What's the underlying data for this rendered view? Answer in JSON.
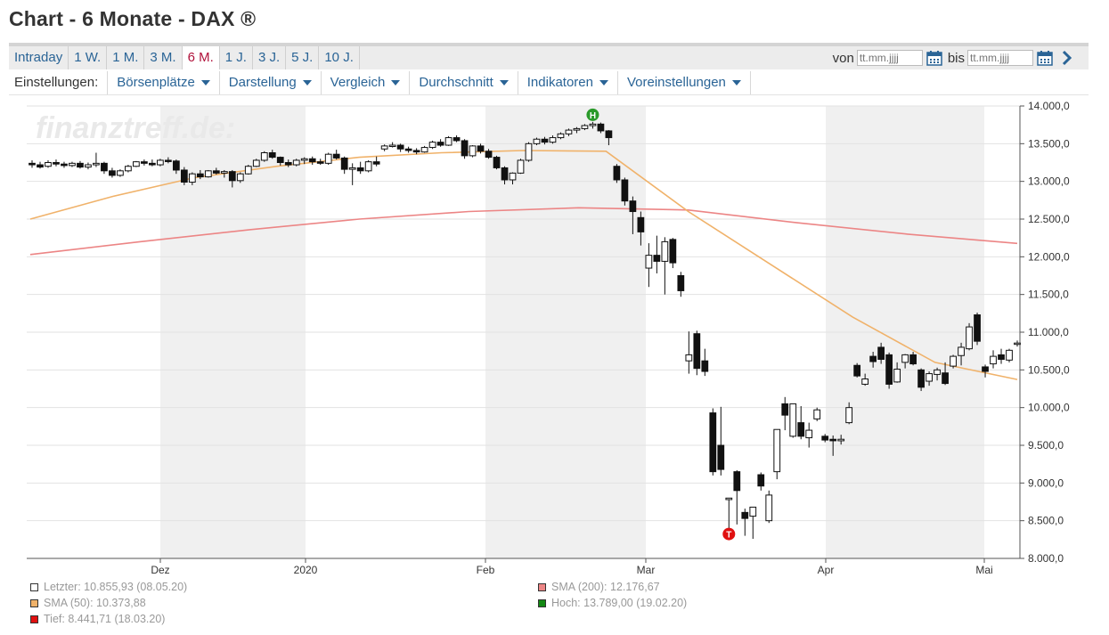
{
  "page": {
    "title": "Chart - 6 Monate - DAX ®"
  },
  "timeframe_tabs": [
    {
      "label": "Intraday",
      "active": false
    },
    {
      "label": "1 W.",
      "active": false
    },
    {
      "label": "1 M.",
      "active": false
    },
    {
      "label": "3 M.",
      "active": false
    },
    {
      "label": "6 M.",
      "active": true
    },
    {
      "label": "1 J.",
      "active": false
    },
    {
      "label": "3 J.",
      "active": false
    },
    {
      "label": "5 J.",
      "active": false
    },
    {
      "label": "10 J.",
      "active": false
    }
  ],
  "date_range": {
    "from_label": "von",
    "from_placeholder": "tt.mm.jjjj",
    "to_label": "bis",
    "to_placeholder": "tt.mm.jjjj",
    "icons": [
      "calendar-icon",
      "calendar-icon",
      "chevron-right-icon"
    ]
  },
  "settings": {
    "label": "Einstellungen:",
    "menus": [
      "Börsenplätze",
      "Darstellung",
      "Vergleich",
      "Durchschnitt",
      "Indikatoren",
      "Voreinstellungen"
    ]
  },
  "watermark": "finanztreff.de:",
  "colors": {
    "link": "#2a6496",
    "active_tab": "#b0113a",
    "sma50": "#f0b26a",
    "sma200": "#ec8585",
    "high_marker": "#2a9a2a",
    "low_marker": "#e01010",
    "shaded_month": "#f0f0f0"
  },
  "chart_data": {
    "type": "candlestick",
    "ylim": [
      8000,
      14000
    ],
    "yticks": [
      "14.000,0",
      "13.500,0",
      "13.000,0",
      "12.500,0",
      "12.000,0",
      "11.500,0",
      "11.000,0",
      "10.500,0",
      "10.000,0",
      "9.500,0",
      "9.000,0",
      "8.500,0",
      "8.000,0"
    ],
    "x_labels": [
      "Dez",
      "2020",
      "Feb",
      "Mar",
      "Apr",
      "Mai"
    ],
    "shaded_months": [
      "Dez",
      "Feb",
      "Apr"
    ],
    "candles": [
      [
        13240,
        13280,
        13180,
        13220
      ],
      [
        13220,
        13260,
        13170,
        13190
      ],
      [
        13200,
        13280,
        13180,
        13250
      ],
      [
        13250,
        13290,
        13200,
        13230
      ],
      [
        13230,
        13260,
        13180,
        13210
      ],
      [
        13210,
        13260,
        13190,
        13240
      ],
      [
        13240,
        13270,
        13170,
        13190
      ],
      [
        13190,
        13250,
        13160,
        13220
      ],
      [
        13220,
        13380,
        13190,
        13240
      ],
      [
        13240,
        13260,
        13100,
        13140
      ],
      [
        13140,
        13180,
        13050,
        13080
      ],
      [
        13080,
        13160,
        13060,
        13140
      ],
      [
        13140,
        13220,
        13120,
        13200
      ],
      [
        13200,
        13270,
        13190,
        13260
      ],
      [
        13260,
        13290,
        13210,
        13240
      ],
      [
        13240,
        13290,
        13200,
        13220
      ],
      [
        13220,
        13300,
        13200,
        13280
      ],
      [
        13280,
        13320,
        13240,
        13270
      ],
      [
        13270,
        13290,
        13100,
        13150
      ],
      [
        13150,
        13190,
        12950,
        12990
      ],
      [
        12990,
        13120,
        12950,
        13100
      ],
      [
        13100,
        13150,
        13030,
        13060
      ],
      [
        13060,
        13150,
        13050,
        13140
      ],
      [
        13140,
        13180,
        13090,
        13110
      ],
      [
        13110,
        13150,
        13050,
        13130
      ],
      [
        13130,
        13150,
        12920,
        13010
      ],
      [
        13010,
        13120,
        12980,
        13100
      ],
      [
        13100,
        13220,
        13090,
        13200
      ],
      [
        13200,
        13300,
        13190,
        13280
      ],
      [
        13280,
        13400,
        13260,
        13380
      ],
      [
        13380,
        13420,
        13300,
        13320
      ],
      [
        13320,
        13330,
        13210,
        13250
      ],
      [
        13250,
        13290,
        13190,
        13220
      ],
      [
        13220,
        13300,
        13200,
        13280
      ],
      [
        13280,
        13320,
        13230,
        13300
      ],
      [
        13300,
        13330,
        13220,
        13260
      ],
      [
        13260,
        13300,
        13220,
        13240
      ],
      [
        13240,
        13380,
        13220,
        13360
      ],
      [
        13360,
        13420,
        13290,
        13310
      ],
      [
        13310,
        13330,
        13100,
        13160
      ],
      [
        13160,
        13240,
        12950,
        13180
      ],
      [
        13180,
        13260,
        13100,
        13140
      ],
      [
        13140,
        13280,
        13120,
        13260
      ],
      [
        13260,
        13330,
        13200,
        13230
      ],
      [
        13430,
        13490,
        13400,
        13470
      ],
      [
        13470,
        13520,
        13450,
        13480
      ],
      [
        13480,
        13500,
        13390,
        13430
      ],
      [
        13430,
        13460,
        13380,
        13410
      ],
      [
        13410,
        13440,
        13360,
        13390
      ],
      [
        13390,
        13470,
        13380,
        13450
      ],
      [
        13450,
        13540,
        13430,
        13520
      ],
      [
        13520,
        13560,
        13460,
        13480
      ],
      [
        13480,
        13600,
        13470,
        13580
      ],
      [
        13580,
        13610,
        13520,
        13540
      ],
      [
        13540,
        13560,
        13300,
        13340
      ],
      [
        13340,
        13480,
        13320,
        13470
      ],
      [
        13470,
        13500,
        13370,
        13400
      ],
      [
        13400,
        13430,
        13300,
        13320
      ],
      [
        13320,
        13340,
        13160,
        13180
      ],
      [
        13180,
        13200,
        12960,
        13020
      ],
      [
        13020,
        13120,
        12960,
        13110
      ],
      [
        13110,
        13300,
        13100,
        13280
      ],
      [
        13280,
        13520,
        13260,
        13500
      ],
      [
        13500,
        13580,
        13480,
        13560
      ],
      [
        13560,
        13590,
        13490,
        13520
      ],
      [
        13520,
        13610,
        13500,
        13580
      ],
      [
        13580,
        13650,
        13560,
        13630
      ],
      [
        13630,
        13700,
        13600,
        13680
      ],
      [
        13680,
        13720,
        13640,
        13700
      ],
      [
        13700,
        13760,
        13680,
        13740
      ],
      [
        13740,
        13789,
        13700,
        13760
      ],
      [
        13760,
        13780,
        13640,
        13670
      ],
      [
        13670,
        13680,
        13480,
        13580
      ],
      [
        13200,
        13230,
        12980,
        13020
      ],
      [
        13020,
        13050,
        12680,
        12740
      ],
      [
        12740,
        12800,
        12300,
        12600
      ],
      [
        12520,
        12600,
        12150,
        12330
      ],
      [
        11850,
        12180,
        11600,
        12020
      ],
      [
        12020,
        12280,
        11780,
        11940
      ],
      [
        11940,
        12260,
        11500,
        12200
      ],
      [
        12230,
        12250,
        11850,
        11920
      ],
      [
        11750,
        11800,
        11470,
        11550
      ],
      [
        10620,
        11010,
        10450,
        10700
      ],
      [
        10980,
        11020,
        10430,
        10520
      ],
      [
        10620,
        10780,
        10420,
        10480
      ],
      [
        9930,
        9990,
        9100,
        9150
      ],
      [
        9500,
        10010,
        9100,
        9180
      ],
      [
        8780,
        8800,
        8260,
        8800
      ],
      [
        9150,
        9170,
        8450,
        8900
      ],
      [
        8610,
        8660,
        8300,
        8530
      ],
      [
        8560,
        8680,
        8260,
        8680
      ],
      [
        9110,
        9140,
        8900,
        8960
      ],
      [
        8500,
        8900,
        8470,
        8840
      ],
      [
        9150,
        9700,
        9050,
        9710
      ],
      [
        10050,
        10140,
        9700,
        9900
      ],
      [
        9620,
        10050,
        9600,
        10050
      ],
      [
        9800,
        10020,
        9580,
        9620
      ],
      [
        9600,
        9800,
        9470,
        9700
      ],
      [
        9850,
        10000,
        9820,
        9970
      ],
      [
        9620,
        9650,
        9540,
        9570
      ],
      [
        9580,
        9630,
        9360,
        9560
      ],
      [
        9560,
        9640,
        9510,
        9580
      ],
      [
        9800,
        10070,
        9780,
        10000
      ],
      [
        10560,
        10590,
        10400,
        10420
      ],
      [
        10310,
        10450,
        10290,
        10380
      ],
      [
        10680,
        10740,
        10530,
        10610
      ],
      [
        10800,
        10860,
        10580,
        10640
      ],
      [
        10700,
        10730,
        10250,
        10310
      ],
      [
        10340,
        10600,
        10330,
        10510
      ],
      [
        10600,
        10710,
        10520,
        10700
      ],
      [
        10700,
        10740,
        10560,
        10580
      ],
      [
        10500,
        10520,
        10220,
        10270
      ],
      [
        10350,
        10480,
        10290,
        10450
      ],
      [
        10440,
        10530,
        10360,
        10500
      ],
      [
        10460,
        10600,
        10300,
        10320
      ],
      [
        10550,
        10700,
        10520,
        10680
      ],
      [
        10690,
        10860,
        10560,
        10800
      ],
      [
        10780,
        11120,
        10760,
        11070
      ],
      [
        11230,
        11260,
        10830,
        10880
      ],
      [
        10540,
        10570,
        10400,
        10480
      ],
      [
        10580,
        10760,
        10520,
        10680
      ],
      [
        10700,
        10780,
        10580,
        10640
      ],
      [
        10630,
        10780,
        10600,
        10760
      ],
      [
        10840,
        10890,
        10810,
        10856
      ]
    ],
    "sma50": [
      12500,
      12800,
      13050,
      13200,
      13320,
      13380,
      13410,
      13400,
      12600,
      11900,
      11200,
      10600,
      10373
    ],
    "sma200": [
      12030,
      12200,
      12360,
      12500,
      12600,
      12650,
      12620,
      12450,
      12300,
      12177
    ],
    "high_marker": {
      "label": "H",
      "value": 13789.0
    },
    "low_marker": {
      "label": "T",
      "value": 8441.71
    },
    "legend": [
      {
        "text": "Letzter: 10.855,93 (08.05.20)",
        "color": "#ffffff"
      },
      {
        "text": "SMA (200): 12.176,67",
        "color": "#ec8585"
      },
      {
        "text": "SMA (50): 10.373,88",
        "color": "#f0b26a"
      },
      {
        "text": "Hoch: 13.789,00 (19.02.20)",
        "color": "#138813"
      },
      {
        "text": "Tief: 8.441,71 (18.03.20)",
        "color": "#e01010"
      }
    ]
  }
}
